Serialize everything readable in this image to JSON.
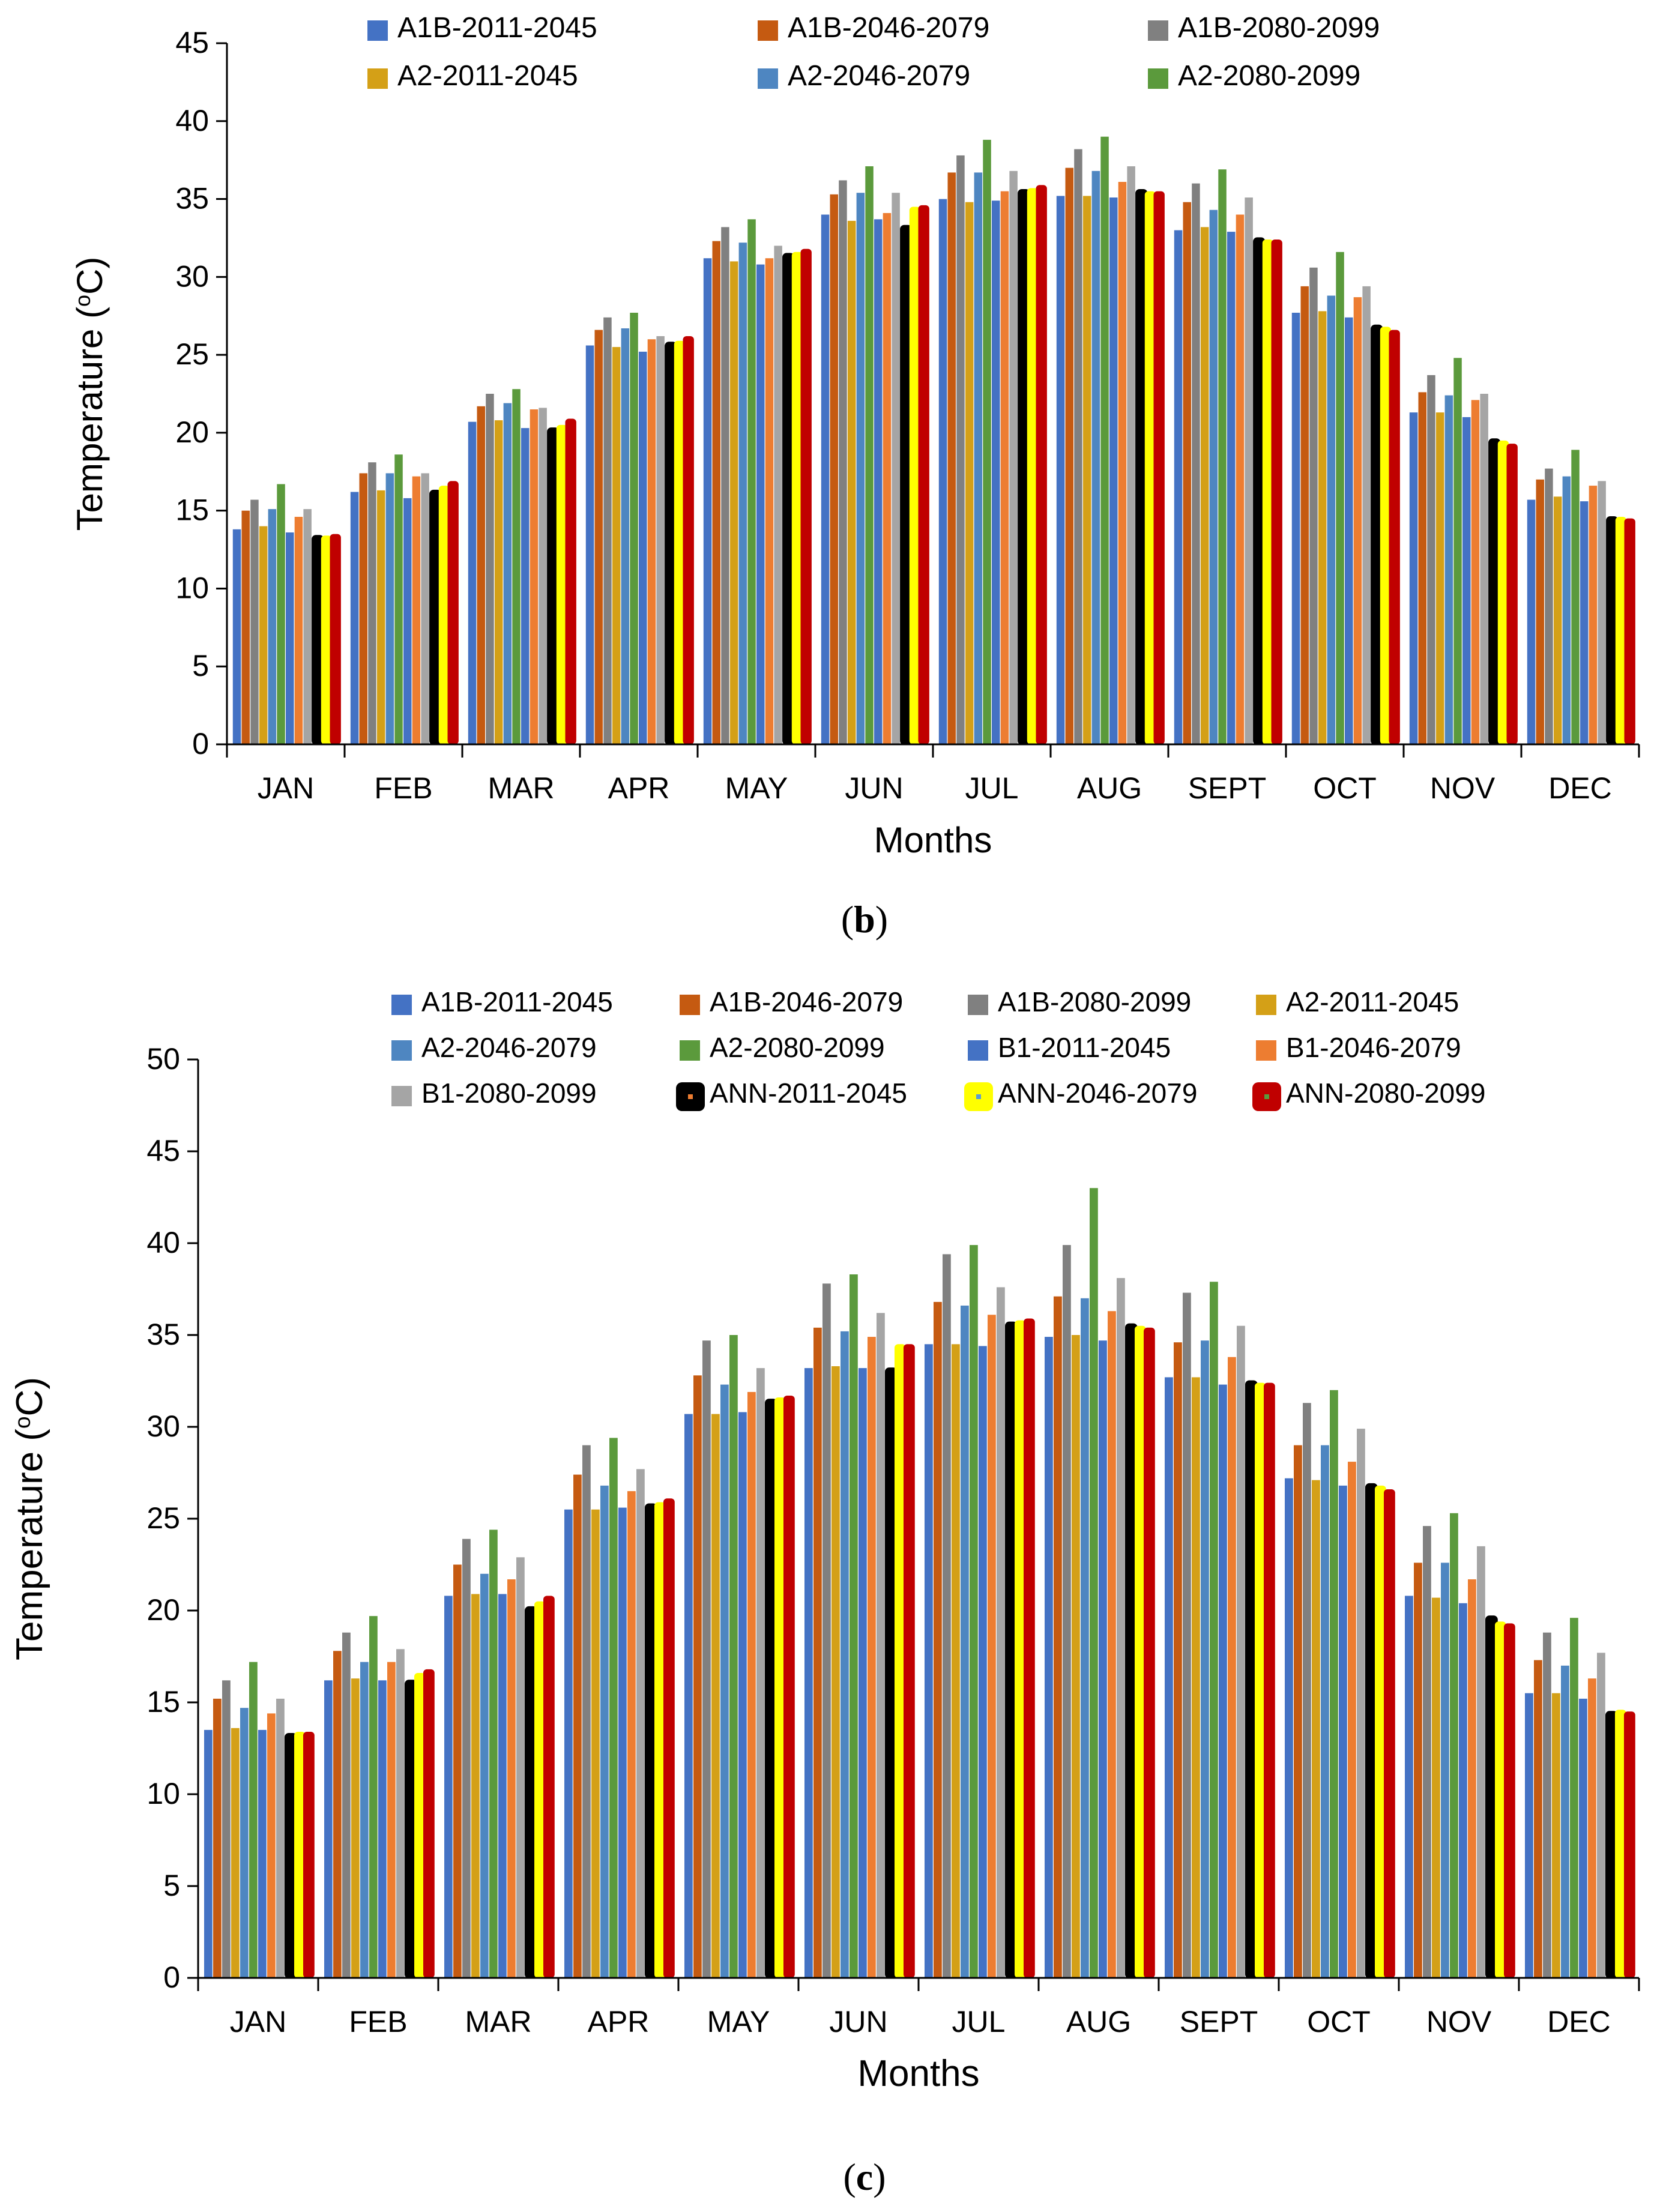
{
  "chart_data": [
    {
      "type": "bar",
      "panel_label": "b",
      "xlabel": "Months",
      "ylabel": "Temperature (oC)",
      "ylim": [
        0,
        45
      ],
      "y_ticks": [
        0,
        5,
        10,
        15,
        20,
        25,
        30,
        35,
        40,
        45
      ],
      "grid": false,
      "legend_position": "top",
      "categories": [
        "JAN",
        "FEB",
        "MAR",
        "APR",
        "MAY",
        "JUN",
        "JUL",
        "AUG",
        "SEPT",
        "OCT",
        "NOV",
        "DEC"
      ],
      "legend_entries": [
        "A1B-2011-2045",
        "A1B-2046-2079",
        "A1B-2080-2099",
        "A2-2011-2045",
        "A2-2046-2079",
        "A2-2080-2099"
      ],
      "series": [
        {
          "name": "A1B-2011-2045",
          "color": "#4472C4",
          "values": [
            13.8,
            16.2,
            20.7,
            25.6,
            31.2,
            34.0,
            35.0,
            35.2,
            33.0,
            27.7,
            21.3,
            15.7
          ]
        },
        {
          "name": "A1B-2046-2079",
          "color": "#C55A11",
          "values": [
            15.0,
            17.4,
            21.7,
            26.6,
            32.3,
            35.3,
            36.7,
            37.0,
            34.8,
            29.4,
            22.6,
            17.0
          ]
        },
        {
          "name": "A1B-2080-2099",
          "color": "#808080",
          "values": [
            15.7,
            18.1,
            22.5,
            27.4,
            33.2,
            36.2,
            37.8,
            38.2,
            36.0,
            30.6,
            23.7,
            17.7
          ]
        },
        {
          "name": "A2-2011-2045",
          "color": "#D4A017",
          "values": [
            14.0,
            16.3,
            20.8,
            25.5,
            31.0,
            33.6,
            34.8,
            35.2,
            33.2,
            27.8,
            21.3,
            15.9
          ]
        },
        {
          "name": "A2-2046-2079",
          "color": "#4E86C1",
          "values": [
            15.1,
            17.4,
            21.9,
            26.7,
            32.2,
            35.4,
            36.7,
            36.8,
            34.3,
            28.8,
            22.4,
            17.2
          ]
        },
        {
          "name": "A2-2080-2099",
          "color": "#5B9A3C",
          "values": [
            16.7,
            18.6,
            22.8,
            27.7,
            33.7,
            37.1,
            38.8,
            39.0,
            36.9,
            31.6,
            24.8,
            18.9
          ]
        },
        {
          "name": "",
          "color": "#4472C4",
          "values": [
            13.6,
            15.8,
            20.3,
            25.2,
            30.8,
            33.7,
            34.9,
            35.1,
            32.9,
            27.4,
            21.0,
            15.6
          ]
        },
        {
          "name": "",
          "color": "#ED7D31",
          "values": [
            14.6,
            17.2,
            21.5,
            26.0,
            31.2,
            34.1,
            35.5,
            36.1,
            34.0,
            28.7,
            22.1,
            16.6
          ]
        },
        {
          "name": "",
          "color": "#A5A5A5",
          "values": [
            15.1,
            17.4,
            21.6,
            26.2,
            32.0,
            35.4,
            36.8,
            37.1,
            35.1,
            29.4,
            22.5,
            16.9
          ]
        },
        {
          "name": "",
          "color": "#000000",
          "values": [
            13.4,
            16.3,
            20.3,
            25.8,
            31.5,
            33.3,
            35.6,
            35.6,
            32.5,
            26.9,
            19.6,
            14.6
          ]
        },
        {
          "name": "",
          "color": "#FFFF00",
          "values": [
            13.4,
            16.6,
            20.5,
            25.9,
            31.6,
            34.5,
            35.7,
            35.5,
            32.4,
            26.8,
            19.5,
            14.6
          ]
        },
        {
          "name": "",
          "color": "#C00000",
          "values": [
            13.5,
            16.9,
            20.9,
            26.2,
            31.8,
            34.6,
            35.9,
            35.5,
            32.4,
            26.6,
            19.3,
            14.5
          ]
        }
      ]
    },
    {
      "type": "bar",
      "panel_label": "c",
      "xlabel": "Months",
      "ylabel": "Temperature (oC)",
      "ylim": [
        0,
        50
      ],
      "y_ticks": [
        0,
        5,
        10,
        15,
        20,
        25,
        30,
        35,
        40,
        45,
        50
      ],
      "grid": false,
      "legend_position": "top",
      "categories": [
        "JAN",
        "FEB",
        "MAR",
        "APR",
        "MAY",
        "JUN",
        "JUL",
        "AUG",
        "SEPT",
        "OCT",
        "NOV",
        "DEC"
      ],
      "legend_entries": [
        "A1B-2011-2045",
        "A1B-2046-2079",
        "A1B-2080-2099",
        "A2-2011-2045",
        "A2-2046-2079",
        "A2-2080-2099",
        "B1-2011-2045",
        "B1-2046-2079",
        "B1-2080-2099",
        "ANN-2011-2045",
        "ANN-2046-2079",
        "ANN-2080-2099"
      ],
      "series": [
        {
          "name": "A1B-2011-2045",
          "color": "#4472C4",
          "values": [
            13.5,
            16.2,
            20.8,
            25.5,
            30.7,
            33.2,
            34.5,
            34.9,
            32.7,
            27.2,
            20.8,
            15.5
          ]
        },
        {
          "name": "A1B-2046-2079",
          "color": "#C55A11",
          "values": [
            15.2,
            17.8,
            22.5,
            27.4,
            32.8,
            35.4,
            36.8,
            37.1,
            34.6,
            29.0,
            22.6,
            17.3
          ]
        },
        {
          "name": "A1B-2080-2099",
          "color": "#808080",
          "values": [
            16.2,
            18.8,
            23.9,
            29.0,
            34.7,
            37.8,
            39.4,
            39.9,
            37.3,
            31.3,
            24.6,
            18.8
          ]
        },
        {
          "name": "A2-2011-2045",
          "color": "#D4A017",
          "values": [
            13.6,
            16.3,
            20.9,
            25.5,
            30.7,
            33.3,
            34.5,
            35.0,
            32.7,
            27.1,
            20.7,
            15.5
          ]
        },
        {
          "name": "A2-2046-2079",
          "color": "#4E86C1",
          "values": [
            14.7,
            17.2,
            22.0,
            26.8,
            32.3,
            35.2,
            36.6,
            37.0,
            34.7,
            29.0,
            22.6,
            17.0
          ]
        },
        {
          "name": "A2-2080-2099",
          "color": "#5B9A3C",
          "values": [
            17.2,
            19.7,
            24.4,
            29.4,
            35.0,
            38.3,
            39.9,
            43.0,
            37.9,
            32.0,
            25.3,
            19.6
          ]
        },
        {
          "name": "B1-2011-2045",
          "color": "#4472C4",
          "values": [
            13.5,
            16.2,
            20.9,
            25.6,
            30.8,
            33.2,
            34.4,
            34.7,
            32.3,
            26.8,
            20.4,
            15.2
          ]
        },
        {
          "name": "B1-2046-2079",
          "color": "#ED7D31",
          "values": [
            14.4,
            17.2,
            21.7,
            26.5,
            31.9,
            34.9,
            36.1,
            36.3,
            33.8,
            28.1,
            21.7,
            16.3
          ]
        },
        {
          "name": "B1-2080-2099",
          "color": "#A5A5A5",
          "values": [
            15.2,
            17.9,
            22.9,
            27.7,
            33.2,
            36.2,
            37.6,
            38.1,
            35.5,
            29.9,
            23.5,
            17.7
          ]
        },
        {
          "name": "ANN-2011-2045",
          "color": "#000000",
          "values": [
            13.3,
            16.2,
            20.2,
            25.8,
            31.5,
            33.2,
            35.7,
            35.6,
            32.5,
            26.9,
            19.7,
            14.5
          ]
        },
        {
          "name": "ANN-2046-2079",
          "color": "#FFFF00",
          "values": [
            13.4,
            16.6,
            20.5,
            25.9,
            31.6,
            34.5,
            35.8,
            35.5,
            32.4,
            26.8,
            19.4,
            14.6
          ]
        },
        {
          "name": "ANN-2080-2099",
          "color": "#C00000",
          "values": [
            13.4,
            16.8,
            20.8,
            26.1,
            31.7,
            34.5,
            35.9,
            35.4,
            32.4,
            26.6,
            19.3,
            14.5
          ]
        }
      ]
    }
  ]
}
